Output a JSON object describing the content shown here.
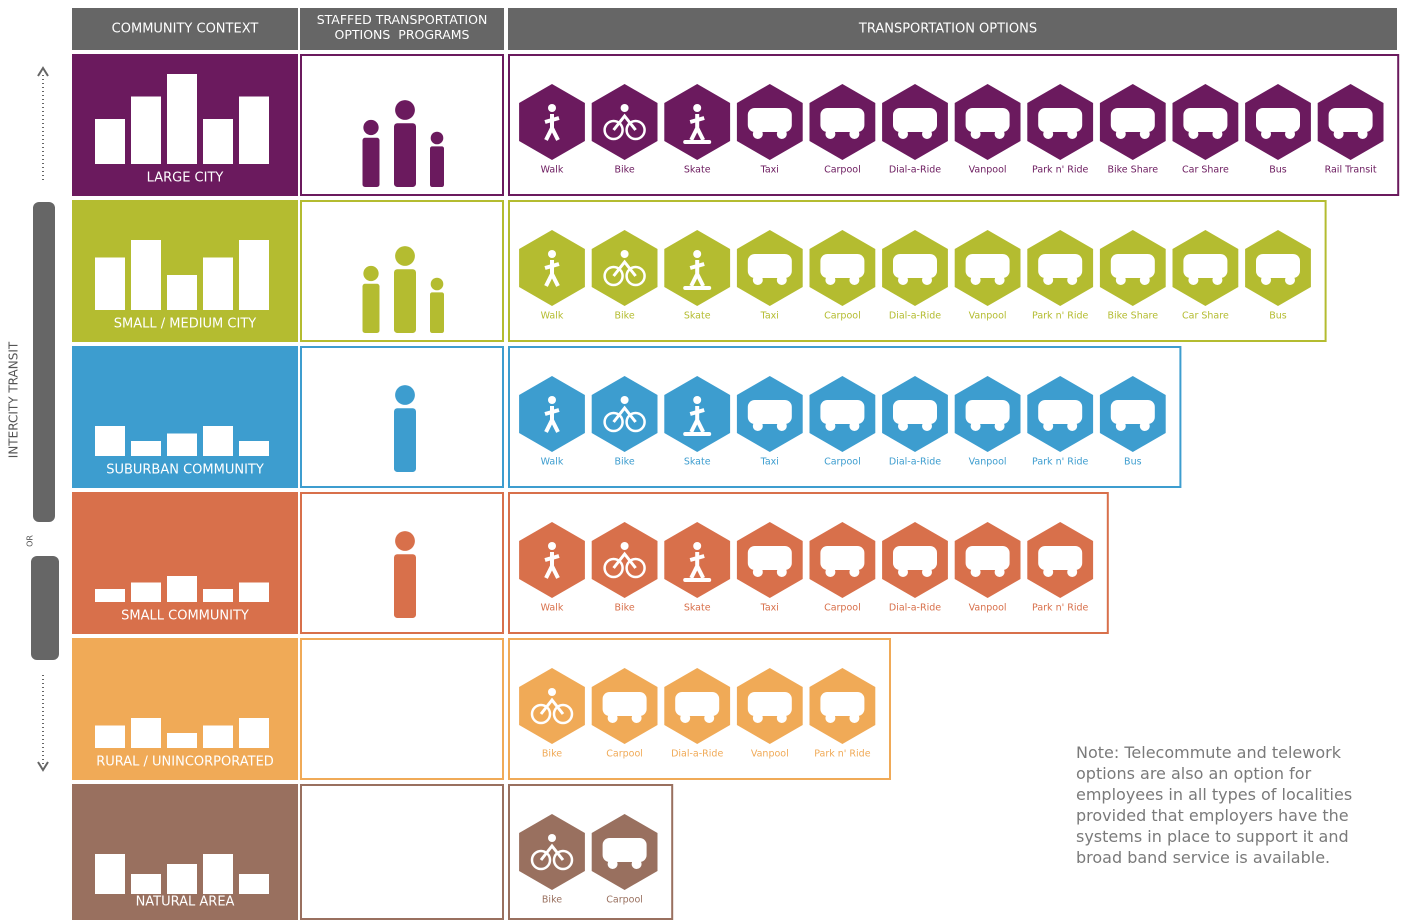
{
  "headers": [
    "COMMUNITY CONTEXT",
    "STAFFED TRANSPORTATION OPTIONS  PROGRAMS",
    "TRANSPORTATION OPTIONS"
  ],
  "side_label": "INTERCITY TRANSIT",
  "side_or": "OR",
  "rows": [
    {
      "label": "LARGE CITY",
      "color": "#6b1a5e",
      "options": [
        "Walk",
        "Bike",
        "Skate",
        "Taxi",
        "Carpool",
        "Dial-a-Ride",
        "Vanpool",
        "Park n' Ride",
        "Bike Share",
        "Car Share",
        "Bus",
        "Rail Transit"
      ]
    },
    {
      "label": "SMALL / MEDIUM CITY",
      "color": "#b4bc30",
      "options": [
        "Walk",
        "Bike",
        "Skate",
        "Taxi",
        "Carpool",
        "Dial-a-Ride",
        "Vanpool",
        "Park n' Ride",
        "Bike Share",
        "Car Share",
        "Bus"
      ]
    },
    {
      "label": "SUBURBAN COMMUNITY",
      "color": "#3d9dcf",
      "options": [
        "Walk",
        "Bike",
        "Skate",
        "Taxi",
        "Carpool",
        "Dial-a-Ride",
        "Vanpool",
        "Park n' Ride",
        "Bus"
      ]
    },
    {
      "label": "SMALL COMMUNITY",
      "color": "#d8704b",
      "options": [
        "Walk",
        "Bike",
        "Skate",
        "Taxi",
        "Carpool",
        "Dial-a-Ride",
        "Vanpool",
        "Park n' Ride"
      ]
    },
    {
      "label": "RURAL / UNINCORPORATED",
      "color": "#f0aa57",
      "options": [
        "Bike",
        "Carpool",
        "Dial-a-Ride",
        "Vanpool",
        "Park n' Ride"
      ]
    },
    {
      "label": "NATURAL AREA",
      "color": "#99705f",
      "options": [
        "Bike",
        "Carpool"
      ]
    }
  ],
  "note": "Note: Telecommute and telework options are also an option for employees in all types of localities provided that employers have the systems in place to support it and broad band service is available."
}
